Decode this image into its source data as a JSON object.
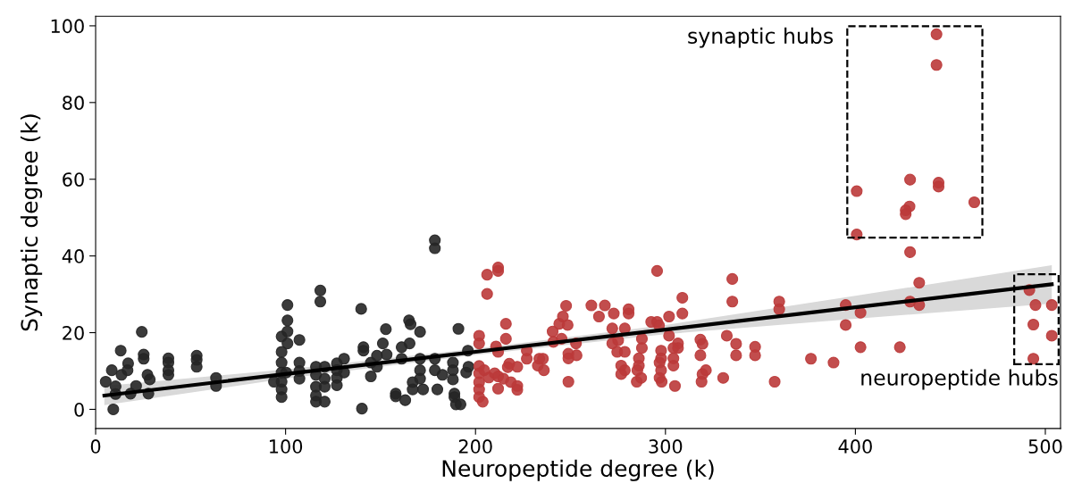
{
  "chart_data": {
    "type": "scatter",
    "xlabel": "Neuropeptide degree (k)",
    "ylabel": "Synaptic degree (k)",
    "xlim": [
      0,
      508
    ],
    "ylim": [
      -5,
      102.5
    ],
    "xticks": [
      0,
      100,
      200,
      300,
      400,
      500
    ],
    "yticks": [
      0,
      20,
      40,
      60,
      80,
      100
    ],
    "grid": false,
    "marker": "circle",
    "legend": false,
    "annotations": [
      "synaptic hubs",
      "neuropeptide hubs"
    ],
    "series": [
      {
        "color": "#262626",
        "x": [
          5.3,
          8.5,
          9.3,
          10.5,
          10.5,
          13.2,
          13.6,
          17.1,
          16.8,
          18.4,
          21.3,
          24.3,
          25.3,
          25.3,
          27.3,
          27.8,
          28.5,
          38.3,
          38.3,
          38.3,
          38.3,
          53.2,
          53.2,
          53.2,
          63.4,
          63.4,
          93.9,
          97.9,
          97.9,
          97.9,
          97.9,
          97.9,
          97.9,
          97.9,
          101,
          101,
          101,
          101,
          100.3,
          107.3,
          107.3,
          107.3,
          107.3,
          116,
          116,
          116,
          116,
          116,
          118.3,
          118.3,
          120.6,
          120.6,
          120.6,
          120.6,
          127,
          127,
          127,
          127,
          130.8,
          130.8,
          139.8,
          140.2,
          141,
          141,
          144.9,
          144.9,
          148.1,
          148.1,
          151.2,
          152.8,
          153.2,
          158,
          158,
          161.1,
          161.1,
          163,
          165,
          165.8,
          165.3,
          166.9,
          166.9,
          170.8,
          170.8,
          170.8,
          170.8,
          172.4,
          178.6,
          178.6,
          178.6,
          178.6,
          179.9,
          182.6,
          188.1,
          188.1,
          188.1,
          188.9,
          188.9,
          189.7,
          192.1,
          191,
          195.1,
          196,
          196.3
        ],
        "values": [
          7.2,
          10.2,
          0,
          6,
          4,
          15.3,
          9,
          12,
          10.2,
          4.1,
          6.1,
          20.2,
          14.3,
          13.2,
          9,
          4.1,
          7.8,
          13.3,
          12.2,
          10.2,
          9,
          14,
          12.9,
          11.1,
          8.2,
          6.1,
          7.2,
          19,
          15,
          12.2,
          9.6,
          7.2,
          5.2,
          3.2,
          27.2,
          23.2,
          20.3,
          17.2,
          9.6,
          18.1,
          12.2,
          10,
          8,
          11.1,
          9,
          5.9,
          3.6,
          2,
          31,
          28.1,
          11.1,
          8,
          5.9,
          2,
          12,
          10.2,
          8.2,
          6.3,
          13.2,
          9.6,
          26.2,
          0.2,
          16.2,
          15.3,
          12.2,
          8.6,
          14,
          11.1,
          17.2,
          20.9,
          14.3,
          4.1,
          3.4,
          16.2,
          13.2,
          2.4,
          23.2,
          22.2,
          17.2,
          7.1,
          5.2,
          20.2,
          13.2,
          10.2,
          8,
          5.2,
          44.1,
          42,
          13.2,
          10.2,
          5.2,
          9,
          12.2,
          10.2,
          7.8,
          4.1,
          3.2,
          1.3,
          1.3,
          21,
          9.6,
          15.3,
          11.1
        ]
      },
      {
        "color": "#bb3a3a",
        "x": [
          206.1,
          211.9,
          211.9,
          206.1,
          216,
          201.9,
          201.9,
          216,
          210.8,
          211.9,
          201.9,
          201.9,
          201.9,
          201.9,
          201.9,
          203.8,
          204.6,
          207,
          210.1,
          211.9,
          211.9,
          214.7,
          217.8,
          217,
          218.6,
          222,
          222,
          222,
          227,
          227,
          233.6,
          232.8,
          235.5,
          236,
          240.6,
          241,
          244.1,
          246,
          247.7,
          248.5,
          245.3,
          248.9,
          248.9,
          252.9,
          253.2,
          248.9,
          261,
          265,
          268.1,
          272.8,
          272,
          272,
          275.1,
          274.6,
          278.6,
          278.6,
          280.6,
          280.6,
          276.7,
          278.6,
          276.7,
          286,
          286,
          285.2,
          284.9,
          287.6,
          287.6,
          287.2,
          292.5,
          295.6,
          295.6,
          296.6,
          297.7,
          297.7,
          296.9,
          297.7,
          296.9,
          298,
          301.9,
          301.9,
          305,
          304.2,
          304.2,
          306.6,
          306.6,
          304.2,
          308.9,
          308.9,
          318.4,
          319.5,
          318.4,
          319.5,
          319,
          321.3,
          330.4,
          332.3,
          335.2,
          335.2,
          337.2,
          337.2,
          347.2,
          347.2,
          357.5,
          359.9,
          359.9,
          376.6,
          388.5,
          394.9,
          394.9,
          402.7,
          402.7,
          400.7,
          423.4,
          428.8,
          428.8,
          433.6,
          433.6,
          491.6,
          494.8,
          503.4,
          493.7,
          503.4,
          493.7,
          442.7,
          442.7,
          400.7,
          428.8,
          428.5,
          426.5,
          426.5,
          443.8,
          443.8,
          462.6
        ],
        "values": [
          35.1,
          37,
          36.1,
          30.1,
          22.3,
          19.2,
          17.2,
          18.4,
          16.4,
          15,
          11.3,
          9.4,
          7.1,
          5.2,
          3.2,
          2,
          10.2,
          8.3,
          9.4,
          8.6,
          5.4,
          8,
          11.9,
          11,
          7.1,
          11.1,
          6.1,
          5.1,
          15.3,
          13.2,
          13.2,
          11.4,
          13.2,
          10.2,
          20.3,
          17.6,
          22.3,
          24.2,
          27,
          22,
          18.4,
          14.5,
          13.3,
          17.2,
          14.1,
          7.2,
          27.1,
          24.2,
          27.1,
          25,
          21.1,
          17.2,
          18,
          15,
          21.1,
          15,
          26.1,
          25,
          11.4,
          10.2,
          9.2,
          13.3,
          11.4,
          10.2,
          7.2,
          18.4,
          16,
          8.2,
          22.8,
          36.1,
          22.8,
          21.9,
          15.3,
          13.3,
          12.2,
          10.2,
          8.2,
          7.2,
          24.2,
          19.2,
          6.1,
          13.3,
          11.4,
          17.2,
          16,
          16,
          29.1,
          25,
          18.2,
          17.1,
          14.1,
          9.2,
          7.2,
          10.2,
          8.2,
          19.2,
          34,
          28.1,
          17.1,
          14.1,
          16.3,
          14.1,
          7.2,
          28.1,
          26.1,
          13.2,
          12.2,
          27.2,
          22,
          25.2,
          16.2,
          45.6,
          16.2,
          41,
          28.1,
          33,
          27.2,
          31.1,
          27.2,
          27.2,
          22.1,
          19.2,
          13.2,
          97.8,
          89.8,
          56.9,
          59.9,
          52.9,
          51.9,
          50.9,
          59.1,
          58.1,
          54
        ]
      },
      {
        "type": "line",
        "color": "#000000",
        "line_style": "solid",
        "marker": "none",
        "x": [
          4.6,
          100,
          200,
          300,
          400,
          503.4
        ],
        "values": [
          3.6,
          9.2,
          15,
          20.8,
          26.6,
          32.6
        ],
        "lower": [
          1.1,
          8,
          14.2,
          19.6,
          23.6,
          27.6
        ],
        "upper": [
          6.1,
          10.4,
          15.8,
          22,
          29.6,
          37.6
        ]
      }
    ]
  }
}
